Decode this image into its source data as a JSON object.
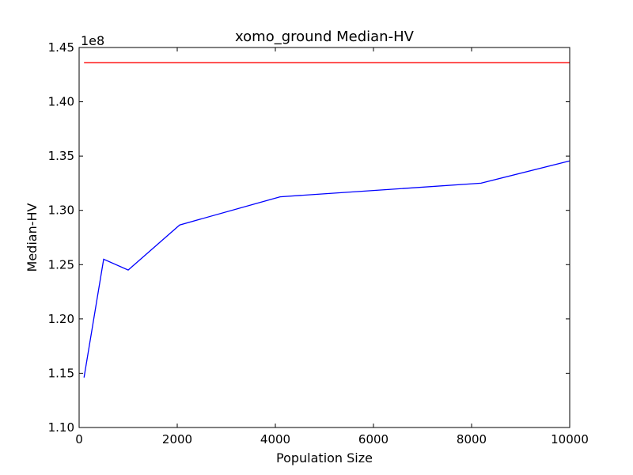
{
  "chart_data": {
    "type": "line",
    "title": "xomo_ground Median-HV",
    "xlabel": "Population Size",
    "ylabel": "Median-HV",
    "y_offset_label": "1e8",
    "xlim": [
      0,
      10000
    ],
    "ylim": [
      1.1,
      1.45
    ],
    "x_ticks": [
      0,
      2000,
      4000,
      6000,
      8000,
      10000
    ],
    "x_tick_labels": [
      "0",
      "2000",
      "4000",
      "6000",
      "8000",
      "10000"
    ],
    "y_ticks": [
      1.1,
      1.15,
      1.2,
      1.25,
      1.3,
      1.35,
      1.4,
      1.45
    ],
    "y_tick_labels": [
      "1.10",
      "1.15",
      "1.20",
      "1.25",
      "1.30",
      "1.35",
      "1.40",
      "1.45"
    ],
    "grid": false,
    "series": [
      {
        "color": "#0000ff",
        "x": [
          100,
          500,
          1000,
          2048,
          4096,
          8192,
          10000
        ],
        "y": [
          1.146,
          1.255,
          1.245,
          1.2865,
          1.3125,
          1.325,
          1.3455
        ]
      },
      {
        "color": "#ff0000",
        "x": [
          100,
          10000
        ],
        "y": [
          1.436,
          1.436
        ]
      }
    ]
  }
}
